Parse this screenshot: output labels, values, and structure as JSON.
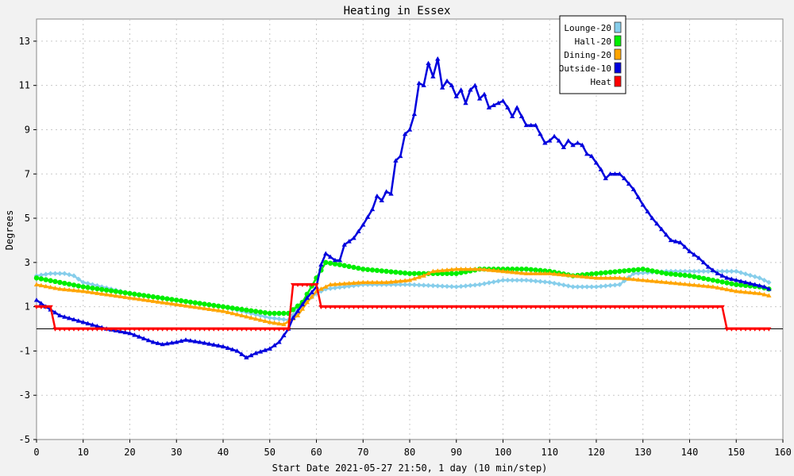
{
  "chart_data": {
    "type": "line",
    "title": "Heating in Essex",
    "xlabel": "Start Date 2021-05-27 21:50, 1 day (10 min/step)",
    "ylabel": "Degrees",
    "xlim": [
      0,
      160
    ],
    "ylim": [
      -5,
      14
    ],
    "xticks": [
      0,
      10,
      20,
      30,
      40,
      50,
      60,
      70,
      80,
      90,
      100,
      110,
      120,
      130,
      140,
      150,
      160
    ],
    "yticks": [
      -5,
      -3,
      -1,
      1,
      3,
      5,
      7,
      9,
      11,
      13
    ],
    "grid": true,
    "legend_position": "top-right",
    "series": [
      {
        "name": "Lounge-20",
        "color": "#87ceeb",
        "marker": "diamond",
        "points": [
          [
            0,
            2.4
          ],
          [
            3,
            2.5
          ],
          [
            6,
            2.5
          ],
          [
            8,
            2.4
          ],
          [
            10,
            2.1
          ],
          [
            20,
            1.6
          ],
          [
            30,
            1.3
          ],
          [
            40,
            1.0
          ],
          [
            50,
            0.5
          ],
          [
            54,
            0.4
          ],
          [
            57,
            1.1
          ],
          [
            60,
            1.6
          ],
          [
            62,
            1.8
          ],
          [
            70,
            2.0
          ],
          [
            80,
            2.0
          ],
          [
            90,
            1.9
          ],
          [
            95,
            2.0
          ],
          [
            100,
            2.2
          ],
          [
            105,
            2.2
          ],
          [
            110,
            2.1
          ],
          [
            115,
            1.9
          ],
          [
            120,
            1.9
          ],
          [
            125,
            2.0
          ],
          [
            128,
            2.5
          ],
          [
            135,
            2.6
          ],
          [
            140,
            2.6
          ],
          [
            145,
            2.6
          ],
          [
            150,
            2.6
          ],
          [
            155,
            2.3
          ],
          [
            157,
            2.1
          ]
        ]
      },
      {
        "name": "Hall-20",
        "color": "#00ee00",
        "marker": "circle",
        "points": [
          [
            0,
            2.3
          ],
          [
            5,
            2.1
          ],
          [
            10,
            1.9
          ],
          [
            20,
            1.6
          ],
          [
            30,
            1.3
          ],
          [
            40,
            1.0
          ],
          [
            50,
            0.7
          ],
          [
            54,
            0.7
          ],
          [
            57,
            1.2
          ],
          [
            60,
            2.3
          ],
          [
            62,
            3.0
          ],
          [
            65,
            2.9
          ],
          [
            70,
            2.7
          ],
          [
            75,
            2.6
          ],
          [
            80,
            2.5
          ],
          [
            85,
            2.5
          ],
          [
            90,
            2.5
          ],
          [
            95,
            2.7
          ],
          [
            100,
            2.7
          ],
          [
            105,
            2.7
          ],
          [
            110,
            2.6
          ],
          [
            115,
            2.4
          ],
          [
            120,
            2.5
          ],
          [
            125,
            2.6
          ],
          [
            130,
            2.7
          ],
          [
            135,
            2.5
          ],
          [
            140,
            2.4
          ],
          [
            145,
            2.2
          ],
          [
            150,
            2.0
          ],
          [
            155,
            1.9
          ],
          [
            157,
            1.8
          ]
        ]
      },
      {
        "name": "Dining-20",
        "color": "#ffa500",
        "marker": "triangle",
        "points": [
          [
            0,
            2.0
          ],
          [
            5,
            1.8
          ],
          [
            10,
            1.7
          ],
          [
            20,
            1.4
          ],
          [
            30,
            1.1
          ],
          [
            40,
            0.8
          ],
          [
            50,
            0.3
          ],
          [
            53,
            0.2
          ],
          [
            56,
            0.6
          ],
          [
            58,
            1.2
          ],
          [
            60,
            1.7
          ],
          [
            63,
            2.0
          ],
          [
            70,
            2.1
          ],
          [
            75,
            2.1
          ],
          [
            80,
            2.2
          ],
          [
            83,
            2.4
          ],
          [
            85,
            2.6
          ],
          [
            90,
            2.7
          ],
          [
            95,
            2.7
          ],
          [
            100,
            2.6
          ],
          [
            105,
            2.5
          ],
          [
            110,
            2.5
          ],
          [
            115,
            2.4
          ],
          [
            120,
            2.3
          ],
          [
            125,
            2.3
          ],
          [
            130,
            2.2
          ],
          [
            135,
            2.1
          ],
          [
            140,
            2.0
          ],
          [
            145,
            1.9
          ],
          [
            150,
            1.7
          ],
          [
            155,
            1.6
          ],
          [
            157,
            1.5
          ]
        ]
      },
      {
        "name": "Outside-10",
        "color": "#0000dd",
        "marker": "triangle",
        "points": [
          [
            0,
            1.3
          ],
          [
            2,
            1.0
          ],
          [
            5,
            0.6
          ],
          [
            10,
            0.3
          ],
          [
            15,
            0.0
          ],
          [
            20,
            -0.2
          ],
          [
            25,
            -0.6
          ],
          [
            27,
            -0.7
          ],
          [
            30,
            -0.6
          ],
          [
            32,
            -0.5
          ],
          [
            35,
            -0.6
          ],
          [
            40,
            -0.8
          ],
          [
            43,
            -1.0
          ],
          [
            45,
            -1.3
          ],
          [
            47,
            -1.1
          ],
          [
            50,
            -0.9
          ],
          [
            52,
            -0.6
          ],
          [
            54,
            0.0
          ],
          [
            55,
            0.5
          ],
          [
            58,
            1.4
          ],
          [
            60,
            1.9
          ],
          [
            61,
            2.9
          ],
          [
            62,
            3.4
          ],
          [
            64,
            3.1
          ],
          [
            65,
            3.1
          ],
          [
            66,
            3.8
          ],
          [
            68,
            4.1
          ],
          [
            70,
            4.7
          ],
          [
            72,
            5.4
          ],
          [
            73,
            6.0
          ],
          [
            74,
            5.8
          ],
          [
            75,
            6.2
          ],
          [
            76,
            6.1
          ],
          [
            77,
            7.6
          ],
          [
            78,
            7.8
          ],
          [
            79,
            8.8
          ],
          [
            80,
            9.0
          ],
          [
            81,
            9.7
          ],
          [
            82,
            11.1
          ],
          [
            83,
            11.0
          ],
          [
            84,
            12.0
          ],
          [
            85,
            11.4
          ],
          [
            86,
            12.2
          ],
          [
            87,
            10.9
          ],
          [
            88,
            11.2
          ],
          [
            89,
            11.0
          ],
          [
            90,
            10.5
          ],
          [
            91,
            10.8
          ],
          [
            92,
            10.2
          ],
          [
            93,
            10.8
          ],
          [
            94,
            11.0
          ],
          [
            95,
            10.4
          ],
          [
            96,
            10.6
          ],
          [
            97,
            10.0
          ],
          [
            98,
            10.1
          ],
          [
            100,
            10.3
          ],
          [
            101,
            10.0
          ],
          [
            102,
            9.6
          ],
          [
            103,
            10.0
          ],
          [
            104,
            9.6
          ],
          [
            105,
            9.2
          ],
          [
            107,
            9.2
          ],
          [
            109,
            8.4
          ],
          [
            110,
            8.5
          ],
          [
            111,
            8.7
          ],
          [
            112,
            8.5
          ],
          [
            113,
            8.2
          ],
          [
            114,
            8.5
          ],
          [
            115,
            8.3
          ],
          [
            116,
            8.4
          ],
          [
            117,
            8.3
          ],
          [
            118,
            7.9
          ],
          [
            119,
            7.8
          ],
          [
            120,
            7.5
          ],
          [
            121,
            7.2
          ],
          [
            122,
            6.8
          ],
          [
            123,
            7.0
          ],
          [
            125,
            7.0
          ],
          [
            126,
            6.8
          ],
          [
            128,
            6.3
          ],
          [
            130,
            5.6
          ],
          [
            132,
            5.0
          ],
          [
            134,
            4.5
          ],
          [
            136,
            4.0
          ],
          [
            138,
            3.9
          ],
          [
            140,
            3.5
          ],
          [
            142,
            3.2
          ],
          [
            144,
            2.8
          ],
          [
            146,
            2.5
          ],
          [
            148,
            2.3
          ],
          [
            150,
            2.2
          ],
          [
            152,
            2.1
          ],
          [
            154,
            2.0
          ],
          [
            156,
            1.9
          ],
          [
            157,
            1.8
          ]
        ]
      },
      {
        "name": "Heat",
        "color": "#ff0000",
        "marker": "triangle-down",
        "points": [
          [
            0,
            1.0
          ],
          [
            3,
            1.0
          ],
          [
            4,
            0.0
          ],
          [
            54,
            0.0
          ],
          [
            55,
            2.0
          ],
          [
            60,
            2.0
          ],
          [
            61,
            1.0
          ],
          [
            147,
            1.0
          ],
          [
            148,
            0.0
          ],
          [
            157,
            0.0
          ]
        ]
      }
    ]
  }
}
